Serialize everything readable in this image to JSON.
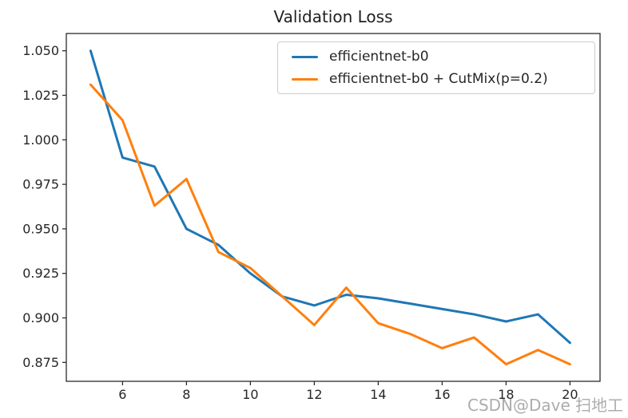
{
  "chart": {
    "title": "Validation Loss",
    "series_labels": [
      "efficientnet-b0",
      "efficientnet-b0 + CutMix(p=0.2)"
    ]
  },
  "watermark": {
    "text": "CSDN@Dave 扫地工"
  },
  "chart_data": {
    "type": "line",
    "title": "Validation Loss",
    "xlabel": "",
    "ylabel": "",
    "x": [
      5,
      6,
      7,
      8,
      9,
      10,
      11,
      12,
      13,
      14,
      15,
      16,
      17,
      18,
      19,
      20
    ],
    "series": [
      {
        "name": "efficientnet-b0",
        "color": "#1f77b4",
        "values": [
          1.05,
          0.99,
          0.985,
          0.95,
          0.941,
          0.925,
          0.912,
          0.907,
          0.913,
          0.911,
          0.908,
          0.905,
          0.902,
          0.898,
          0.902,
          0.886
        ]
      },
      {
        "name": "efficientnet-b0 + CutMix(p=0.2)",
        "color": "#ff7f0e",
        "values": [
          1.031,
          1.011,
          0.963,
          0.978,
          0.937,
          0.928,
          0.912,
          0.896,
          0.917,
          0.897,
          0.891,
          0.883,
          0.889,
          0.874,
          0.882,
          0.874
        ]
      }
    ],
    "xticks": [
      6,
      8,
      10,
      12,
      14,
      16,
      18,
      20
    ],
    "yticks": [
      0.875,
      0.9,
      0.925,
      0.95,
      0.975,
      1.0,
      1.025,
      1.05
    ],
    "ytick_labels": [
      "0.875",
      "0.900",
      "0.925",
      "0.950",
      "0.975",
      "1.000",
      "1.025",
      "1.050"
    ],
    "xlim": [
      4.24,
      20.94
    ],
    "ylim": [
      0.8644,
      1.0597
    ],
    "grid": false,
    "legend_position": "upper right"
  }
}
